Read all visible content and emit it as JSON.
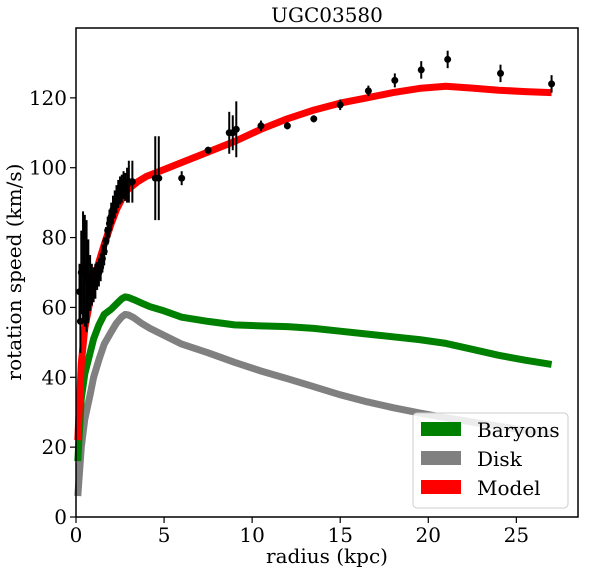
{
  "chart_data": {
    "type": "line",
    "title": "UGC03580",
    "xlabel": "radius (kpc)",
    "ylabel": "rotation speed (km/s)",
    "xlim": [
      0,
      28.5
    ],
    "ylim": [
      0,
      140
    ],
    "xticks": [
      0,
      5,
      10,
      15,
      20,
      25
    ],
    "yticks": [
      0,
      20,
      40,
      60,
      80,
      100,
      120
    ],
    "grid": false,
    "legend_position": "lower-right",
    "series": [
      {
        "name": "Baryons",
        "color": "#008000",
        "x": [
          0.1,
          0.3,
          0.5,
          0.8,
          1.0,
          1.3,
          1.6,
          2.0,
          2.3,
          2.6,
          2.8,
          3.0,
          3.3,
          3.7,
          4.2,
          5.0,
          6.0,
          7.5,
          9.0,
          10.5,
          12.0,
          13.5,
          15.0,
          16.5,
          18.0,
          19.5,
          21.0,
          22.5,
          24.0,
          25.5,
          27.0
        ],
        "y": [
          16,
          34,
          41,
          47,
          51,
          55,
          58,
          59.5,
          61,
          62.5,
          63,
          62.8,
          62.2,
          61.3,
          60.2,
          59,
          57.2,
          56,
          55,
          54.7,
          54.5,
          54,
          53.2,
          52.4,
          51.6,
          50.8,
          49.7,
          48,
          46.3,
          44.9,
          43.7
        ]
      },
      {
        "name": "Disk",
        "color": "#808080",
        "x": [
          0.1,
          0.3,
          0.5,
          0.8,
          1.0,
          1.3,
          1.6,
          2.0,
          2.3,
          2.6,
          2.8,
          3.0,
          3.3,
          3.7,
          4.2,
          5.0,
          6.0,
          7.5,
          9.0,
          10.5,
          12.0,
          13.5,
          15.0,
          16.5,
          18.0,
          19.5,
          21.0,
          22.5,
          24.0,
          25.5,
          27.0
        ],
        "y": [
          6,
          20,
          28,
          35,
          40,
          45,
          49.5,
          53,
          55.5,
          57.3,
          58,
          57.8,
          57,
          55.5,
          54,
          52,
          49.5,
          47,
          44.3,
          41.8,
          39.6,
          37.3,
          35,
          33,
          31.3,
          29.8,
          28.4,
          27.2,
          26,
          24.8,
          23.8
        ]
      },
      {
        "name": "Model",
        "color": "#ff0000",
        "x": [
          0.1,
          0.3,
          0.5,
          0.8,
          1.0,
          1.3,
          1.6,
          2.0,
          2.3,
          2.6,
          2.8,
          3.0,
          3.5,
          4.0,
          4.5,
          5.0,
          6.0,
          7.5,
          9.0,
          10.5,
          12.0,
          13.5,
          15.0,
          16.5,
          18.0,
          19.5,
          21.0,
          22.5,
          24.0,
          25.5,
          27.0
        ],
        "y": [
          22,
          44,
          54,
          62,
          67.5,
          73,
          78,
          84,
          88,
          91,
          93,
          94,
          96,
          97.5,
          98.5,
          99.5,
          101.5,
          104.5,
          107.5,
          111,
          114,
          116.5,
          118.5,
          120,
          121.5,
          122.7,
          123.3,
          122.8,
          122.2,
          121.8,
          121.5
        ]
      }
    ],
    "observed": {
      "name": "data",
      "color": "#000000",
      "x": [
        0.2,
        0.25,
        0.3,
        0.4,
        0.5,
        0.6,
        0.7,
        0.8,
        0.9,
        1.0,
        1.1,
        1.2,
        1.3,
        1.4,
        1.5,
        1.6,
        1.7,
        1.8,
        1.9,
        2.0,
        2.1,
        2.2,
        2.3,
        2.4,
        2.5,
        2.6,
        2.7,
        2.8,
        2.9,
        3.0,
        3.2,
        4.5,
        4.7,
        6.0,
        7.5,
        8.7,
        8.9,
        9.1,
        10.5,
        12.0,
        13.5,
        15.0,
        16.6,
        18.1,
        19.6,
        21.1,
        24.1,
        27.0
      ],
      "y": [
        64.5,
        56,
        70,
        71.5,
        70.5,
        69,
        67.5,
        67,
        66.5,
        66.5,
        67.5,
        69,
        70,
        71.5,
        74,
        76,
        79,
        82,
        84,
        86,
        88,
        89.5,
        91,
        92.5,
        93.5,
        94,
        95,
        94.5,
        95,
        96,
        96,
        97,
        97,
        97,
        105,
        110,
        110,
        111,
        112,
        112,
        114,
        118,
        122,
        125,
        128,
        131,
        127,
        124
      ],
      "err": [
        8,
        9,
        12,
        16,
        16,
        16,
        12,
        8,
        6,
        5,
        5,
        4,
        4,
        4,
        4,
        4,
        4,
        4,
        4,
        4,
        4,
        4,
        4,
        4,
        4,
        4,
        4,
        4,
        5,
        6,
        6,
        12,
        12,
        2,
        1,
        6,
        5,
        8,
        1.5,
        1,
        1,
        1.5,
        1.5,
        2,
        2.5,
        2.5,
        2.5,
        2.5
      ]
    }
  }
}
